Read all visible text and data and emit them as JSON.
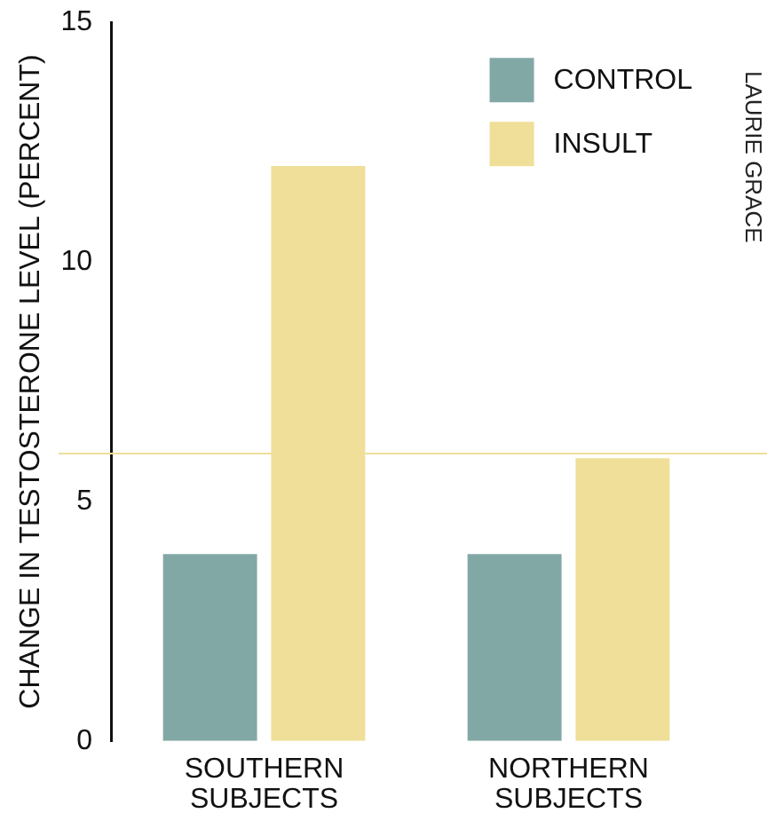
{
  "chart_data": {
    "type": "bar",
    "ylabel": "CHANGE IN TESTOSTERONE LEVEL (PERCENT)",
    "categories": [
      "SOUTHERN SUBJECTS",
      "NORTHERN SUBJECTS"
    ],
    "series": [
      {
        "name": "CONTROL",
        "color": "#82a8a6",
        "values": [
          3.9,
          3.9
        ]
      },
      {
        "name": "INSULT",
        "color": "#efdf98",
        "values": [
          12.0,
          5.9
        ]
      }
    ],
    "ylim": [
      0,
      15
    ],
    "yticks": [
      0,
      5,
      10,
      15
    ],
    "grid": false,
    "legend": "top right",
    "ref_lines": [
      {
        "axis": "y",
        "value": 6,
        "color": "#efdf98"
      }
    ],
    "annotations": [
      "LAURIE GRACE"
    ]
  }
}
